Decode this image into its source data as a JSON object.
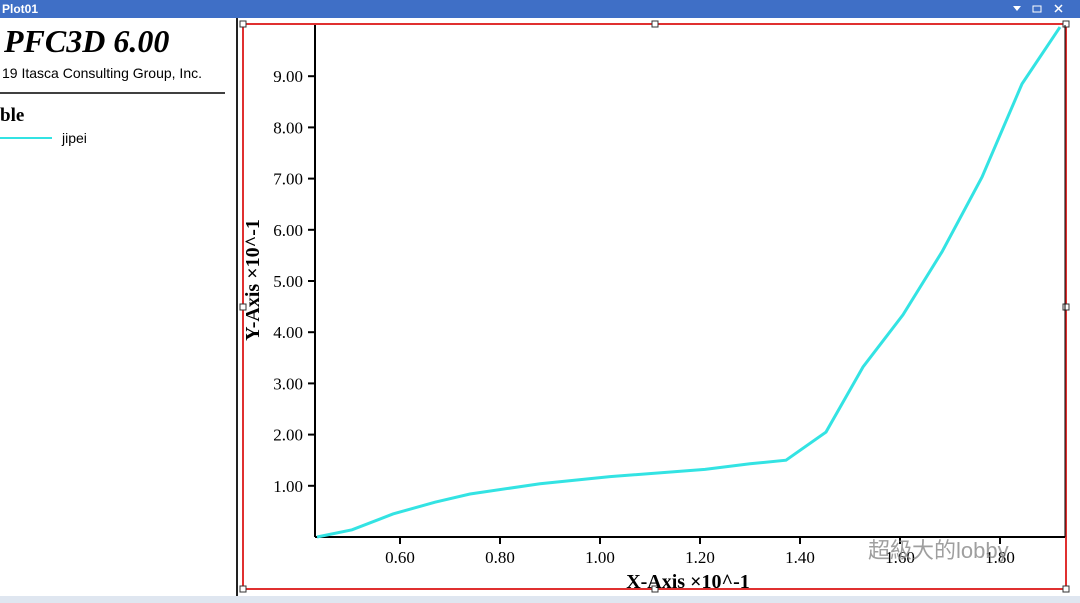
{
  "window": {
    "title": "Plot01"
  },
  "info_panel": {
    "product": "PFC3D 6.00",
    "copyright": "19 Itasca Consulting Group, Inc.",
    "heading": "ble"
  },
  "chart_data": {
    "type": "line",
    "xlabel": "X-Axis ×10^-1",
    "ylabel": "Y-Axis ×10^-1",
    "x": [
      0.434,
      0.504,
      0.586,
      0.67,
      0.74,
      0.88,
      1.02,
      1.21,
      1.3,
      1.372,
      1.452,
      1.526,
      1.606,
      1.684,
      1.764,
      1.844,
      1.92
    ],
    "series": [
      {
        "name": "jipei",
        "color": "#33e3e3",
        "values": [
          0,
          0.14,
          0.45,
          0.68,
          0.84,
          1.04,
          1.18,
          1.32,
          1.43,
          1.5,
          2.05,
          3.32,
          4.34,
          5.57,
          7.03,
          8.85,
          9.96
        ]
      }
    ],
    "xlim": [
      0.43,
      1.93
    ],
    "ylim": [
      0,
      10
    ],
    "xticks": [
      {
        "value": 0.6,
        "label": "0.60"
      },
      {
        "value": 0.8,
        "label": "0.80"
      },
      {
        "value": 1.0,
        "label": "1.00"
      },
      {
        "value": 1.2,
        "label": "1.20"
      },
      {
        "value": 1.4,
        "label": "1.40"
      },
      {
        "value": 1.6,
        "label": "1.60"
      },
      {
        "value": 1.8,
        "label": "1.80"
      }
    ],
    "yticks": [
      {
        "value": 1,
        "label": "1.00"
      },
      {
        "value": 2,
        "label": "2.00"
      },
      {
        "value": 3,
        "label": "3.00"
      },
      {
        "value": 4,
        "label": "4.00"
      },
      {
        "value": 5,
        "label": "5.00"
      },
      {
        "value": 6,
        "label": "6.00"
      },
      {
        "value": 7,
        "label": "7.00"
      },
      {
        "value": 8,
        "label": "8.00"
      },
      {
        "value": 9,
        "label": "9.00"
      }
    ]
  },
  "watermark": "超級大的lobby"
}
